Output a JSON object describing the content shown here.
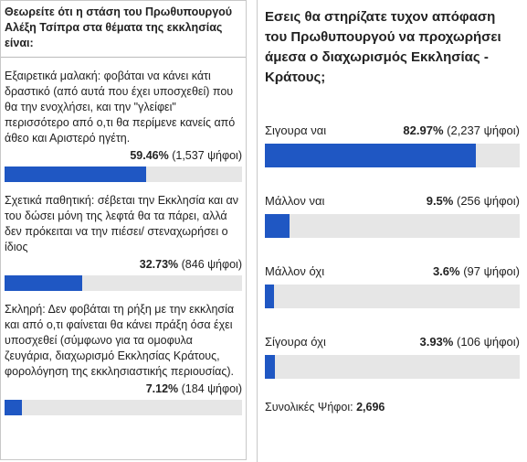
{
  "left_poll": {
    "question": "Θεωρείτε ότι η στάση του Πρωθυπουργού Αλέξη Τσίπρα στα θέματα της εκκλησίας είναι:",
    "options": [
      {
        "text": "Εξαιρετικά μαλακή: φοβάται να κάνει κάτι δραστικό (από αυτά που έχει υποσχεθεί) που θα την ενοχλήσει, και την \"γλείφει\" περισσότερο από ο,τι θα περίμενε κανείς από άθεο και Αριστερό ηγέτη.",
        "percent": {
          "value": 59.46,
          "label": "59.46%"
        },
        "votes": "(1,537 ψήφοι)"
      },
      {
        "text": "Σχετικά παθητική: σέβεται την Εκκλησία και αν του δώσει μόνη της λεφτά θα τα πάρει, αλλά δεν πρόκειται να την πιέσει/ στεναχωρήσει ο ίδιος",
        "percent": {
          "value": 32.73,
          "label": "32.73%"
        },
        "votes": "(846 ψήφοι)"
      },
      {
        "text": "Σκληρή: Δεν φοβάται τη ρήξη με την εκκλησία και από ο,τι φαίνεται θα κάνει πράξη όσα έχει υποσχεθεί (σύμφωνο για τα ομοφυλα ζευγάρια, διαχωρισμό Εκκλησίας Κράτους, φορολόγηση της εκκλησιαστικής περιουσίας).",
        "percent": {
          "value": 7.12,
          "label": "7.12%"
        },
        "votes": "(184 ψήφοι)"
      }
    ]
  },
  "right_poll": {
    "question": "Εσεις θα στηρίζατε τυχον απόφαση του Πρωθυπουργού να προχωρήσει άμεσα ο διαχωρισμός Εκκλησίας - Κράτους;",
    "options": [
      {
        "text": "Σιγουρα ναι",
        "percent": {
          "value": 82.97,
          "label": "82.97%"
        },
        "votes": "(2,237 ψήφοι)"
      },
      {
        "text": "Μάλλον ναι",
        "percent": {
          "value": 9.5,
          "label": "9.5%"
        },
        "votes": "(256 ψήφοι)"
      },
      {
        "text": "Μάλλον όχι",
        "percent": {
          "value": 3.6,
          "label": "3.6%"
        },
        "votes": "(97 ψήφοι)"
      },
      {
        "text": "Σίγουρα όχι",
        "percent": {
          "value": 3.93,
          "label": "3.93%"
        },
        "votes": "(106 ψήφοι)"
      }
    ],
    "total_label": "Συνολικές Ψήφοι:",
    "total": "2,696"
  }
}
